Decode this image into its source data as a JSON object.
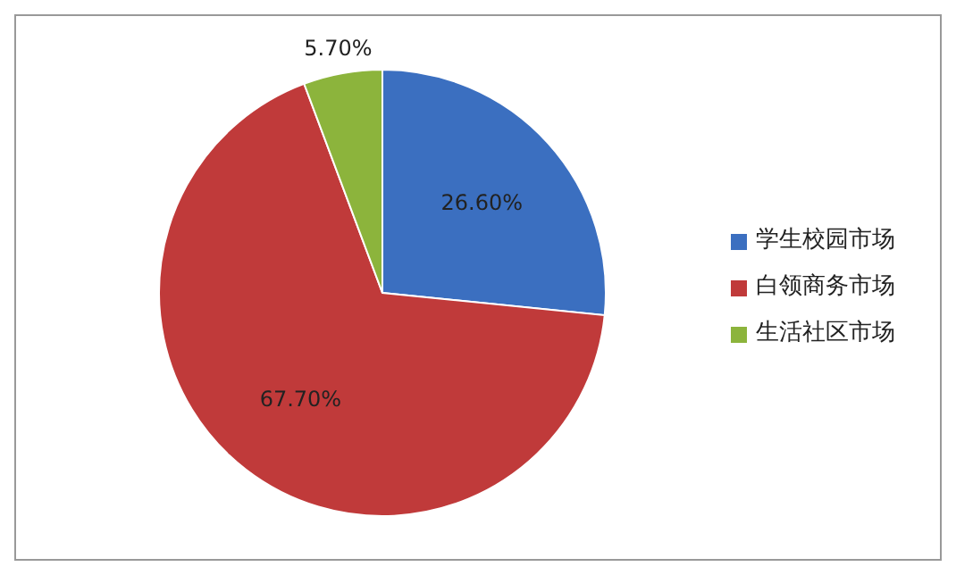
{
  "chart_data": {
    "type": "pie",
    "categories": [
      "学生校园市场",
      "白领商务市场",
      "生活社区市场"
    ],
    "values": [
      26.6,
      67.7,
      5.7
    ],
    "colors": [
      "#3b6fc0",
      "#c03a3a",
      "#8cb43c"
    ],
    "value_labels": [
      "26.60%",
      "67.70%",
      "5.70%"
    ],
    "legend": "right"
  }
}
